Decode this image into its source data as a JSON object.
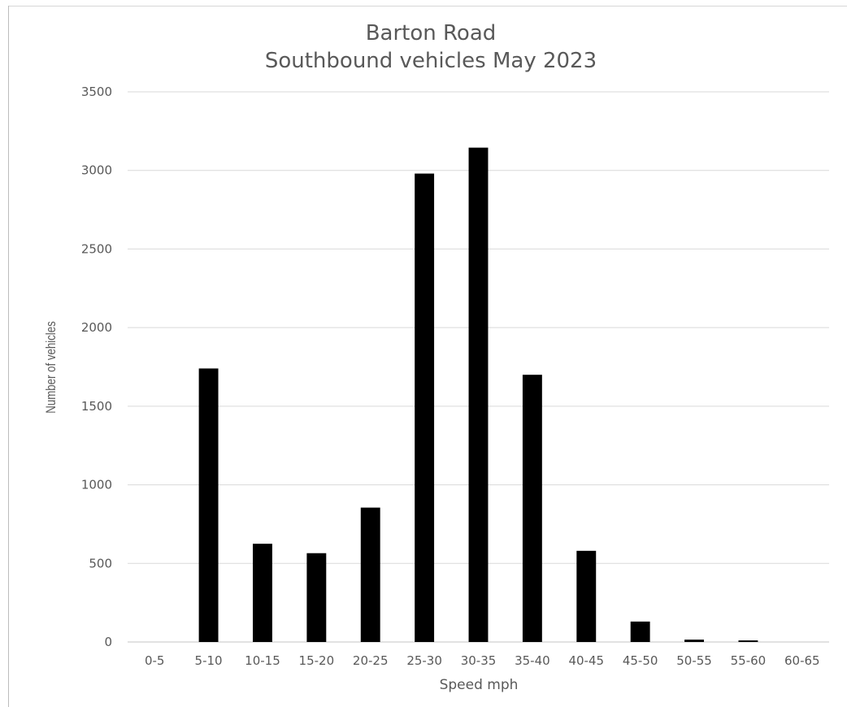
{
  "chart_data": {
    "type": "bar",
    "title": [
      "Barton Road",
      "Southbound vehicles May 2023"
    ],
    "xlabel": "Speed mph",
    "ylabel": "Number of vehicles",
    "categories": [
      "0-5",
      "5-10",
      "10-15",
      "15-20",
      "20-25",
      "25-30",
      "30-35",
      "35-40",
      "40-45",
      "45-50",
      "50-55",
      "55-60",
      "60-65"
    ],
    "values": [
      0,
      1740,
      625,
      565,
      855,
      2980,
      3145,
      1700,
      580,
      130,
      15,
      10,
      0
    ],
    "ylim": [
      0,
      3500
    ],
    "yticks": [
      "0",
      "500",
      "1000",
      "1500",
      "2000",
      "2500",
      "3000",
      "3500"
    ],
    "grid": true,
    "legend": "none",
    "bar_color": "#000000",
    "grid_color": "#d9d9d9",
    "text_color": "#595959"
  }
}
